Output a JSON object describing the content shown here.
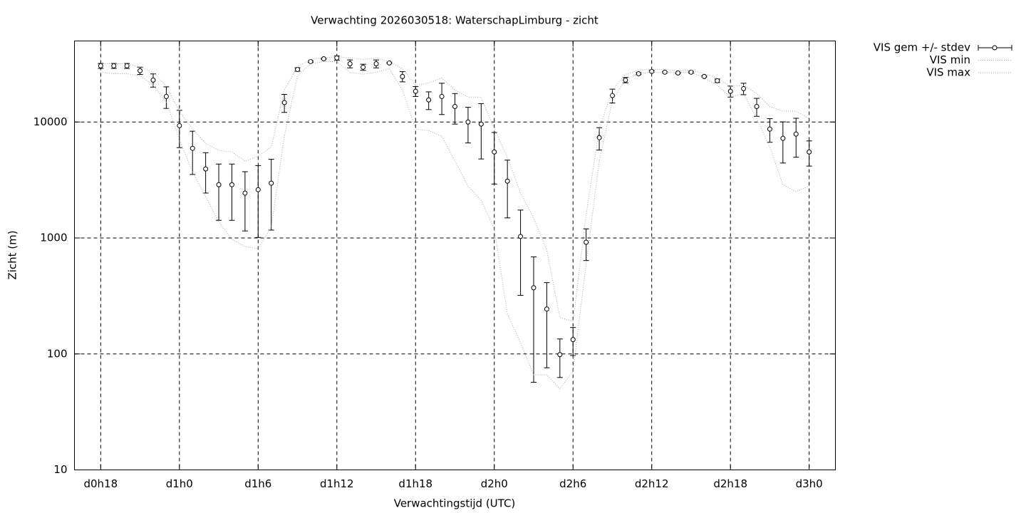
{
  "chart_data": {
    "type": "errorbar",
    "title": "Verwachting 2026030518: WaterschapLimburg - zicht",
    "xlabel": "Verwachtingstijd (UTC)",
    "ylabel": "Zicht (m)",
    "log_y": true,
    "grid": true,
    "legend": "outside-top-right",
    "xlim": [
      16,
      74
    ],
    "ylim": [
      10,
      50000
    ],
    "xticks": [
      {
        "value": 18,
        "label": "d0h18"
      },
      {
        "value": 24,
        "label": "d1h0"
      },
      {
        "value": 30,
        "label": "d1h6"
      },
      {
        "value": 36,
        "label": "d1h12"
      },
      {
        "value": 42,
        "label": "d1h18"
      },
      {
        "value": 48,
        "label": "d2h0"
      },
      {
        "value": 54,
        "label": "d2h6"
      },
      {
        "value": 60,
        "label": "d2h12"
      },
      {
        "value": 66,
        "label": "d2h18"
      },
      {
        "value": 72,
        "label": "d3h0"
      }
    ],
    "yticks": [
      10,
      100,
      1000,
      10000
    ],
    "x": [
      18,
      19,
      20,
      21,
      22,
      23,
      24,
      25,
      26,
      27,
      28,
      29,
      30,
      31,
      32,
      33,
      34,
      35,
      36,
      37,
      38,
      39,
      40,
      41,
      42,
      43,
      44,
      45,
      46,
      47,
      48,
      49,
      50,
      51,
      52,
      53,
      54,
      55,
      56,
      57,
      58,
      59,
      60,
      61,
      62,
      63,
      64,
      65,
      66,
      67,
      68,
      69,
      70,
      71,
      72
    ],
    "series": [
      {
        "name": "VIS gem +/- stdev",
        "color": "#000000",
        "style": "errorbar",
        "values": [
          30500,
          30500,
          30500,
          27700,
          23000,
          16600,
          9310,
          5930,
          3940,
          2880,
          2880,
          2440,
          2610,
          2970,
          14700,
          28400,
          33200,
          35100,
          35700,
          31800,
          29700,
          31800,
          32300,
          24700,
          18400,
          15500,
          16600,
          13600,
          10000,
          9600,
          5520,
          3090,
          1030,
          372,
          244,
          98.6,
          133,
          919,
          7330,
          16900,
          23000,
          26100,
          27300,
          26900,
          26500,
          26900,
          24700,
          22700,
          18400,
          19400,
          13600,
          8690,
          7230,
          7870,
          5520
        ],
        "stdev": [
          1500,
          1500,
          1500,
          2000,
          3000,
          3500,
          3300,
          2400,
          1500,
          1460,
          1460,
          1290,
          1600,
          1800,
          2600,
          1000,
          500,
          300,
          1500,
          2500,
          1800,
          2500,
          300,
          2500,
          1800,
          2700,
          5000,
          4000,
          3400,
          4800,
          2600,
          1600,
          710,
          315,
          168,
          36,
          36,
          280,
          1600,
          2300,
          1200,
          500,
          500,
          300,
          300,
          500,
          300,
          800,
          2000,
          2200,
          2400,
          2000,
          2800,
          2900,
          1350
        ]
      },
      {
        "name": "VIS min",
        "color": "#a8a8a8",
        "style": "dotted",
        "values": [
          26900,
          26100,
          26100,
          25100,
          20800,
          14900,
          7030,
          3720,
          2270,
          1380,
          973,
          844,
          809,
          1240,
          7540,
          25100,
          31800,
          33200,
          33200,
          26900,
          25800,
          26900,
          28800,
          18900,
          8690,
          8440,
          7540,
          4600,
          2810,
          2110,
          1200,
          221,
          125,
          66,
          66,
          50,
          71,
          593,
          4600,
          15300,
          23300,
          26100,
          26900,
          26900,
          26900,
          26900,
          24000,
          20800,
          16400,
          17600,
          10700,
          6100,
          2890,
          2510,
          2810
        ]
      },
      {
        "name": "VIS max",
        "color": "#a8a8a8",
        "style": "dotted",
        "values": [
          31800,
          31800,
          31800,
          29700,
          26900,
          20300,
          12400,
          8690,
          6550,
          5690,
          5520,
          4600,
          5080,
          6100,
          18900,
          30100,
          34700,
          35700,
          36700,
          35700,
          34700,
          35700,
          33200,
          28800,
          20800,
          21700,
          24000,
          18900,
          16400,
          16400,
          8690,
          4930,
          2440,
          1490,
          787,
          206,
          191,
          1590,
          8690,
          18900,
          25800,
          28000,
          28500,
          28500,
          27700,
          28000,
          26100,
          24000,
          20300,
          20800,
          17600,
          13600,
          12400,
          12400,
          10700
        ]
      }
    ]
  }
}
